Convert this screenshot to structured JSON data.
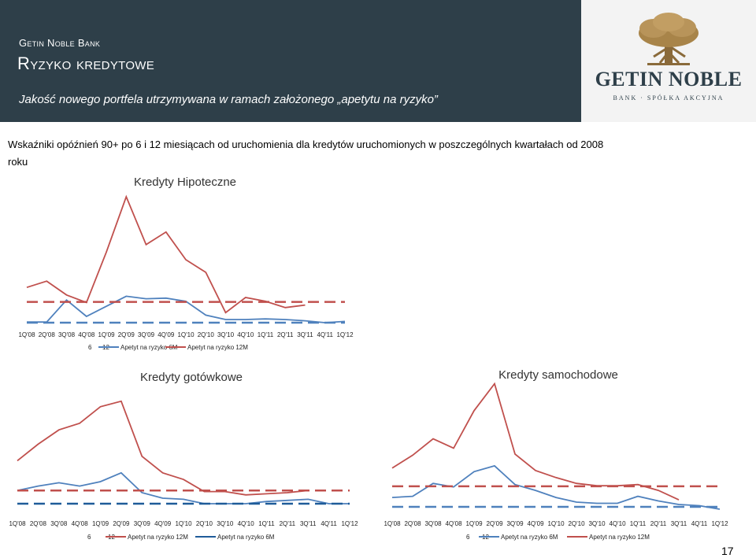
{
  "header": {
    "bank_name": "Getin Noble Bank",
    "title": "Ryzyko kredytowe",
    "subtitle": "Jakość nowego portfela utrzymywana w ramach założonego „apetytu na ryzyko”",
    "logo_name": "GETIN NOBLE",
    "logo_tagline": "BANK · SPÓŁKA AKCYJNA"
  },
  "intro": "Wskaźniki opóźnień 90+ po 6 i 12 miesiącach od uruchomienia dla kredytów uruchomionych w poszczególnych kwartałach od 2008 roku",
  "page_number": "17",
  "colors": {
    "header_bg": "#2e3f49",
    "red_series": "#c0504d",
    "blue_series": "#4f81bd",
    "dark_blue_risk": "#1f5c99"
  },
  "chart_data": [
    {
      "id": "hipoteczne",
      "type": "line",
      "title": "Kredyty Hipoteczne",
      "categories": [
        "1Q'08",
        "2Q'08",
        "3Q'08",
        "4Q'08",
        "1Q'09",
        "2Q'09",
        "3Q'09",
        "4Q'09",
        "1Q'10",
        "2Q'10",
        "3Q'10",
        "4Q'10",
        "1Q'11",
        "2Q'11",
        "3Q'11",
        "4Q'11",
        "1Q'12"
      ],
      "ylim": [
        0,
        100
      ],
      "series": [
        {
          "name": "6",
          "color": "#4f81bd",
          "dash": false,
          "values": [
            0.5,
            0.5,
            18,
            5,
            13,
            21,
            19,
            19.5,
            17,
            6,
            2.5,
            2.5,
            3,
            2.5,
            1.5,
            0,
            1
          ]
        },
        {
          "name": "12",
          "color": "#c0504d",
          "dash": false,
          "values": [
            28,
            33,
            22,
            16,
            56,
            100,
            62,
            72,
            50,
            40,
            8,
            20,
            17,
            12,
            14,
            null,
            null
          ]
        },
        {
          "name": "Apetyt na ryzyko 6M",
          "color": "#4f81bd",
          "dash": true,
          "values": [
            0,
            0,
            0,
            0,
            0,
            0,
            0,
            0,
            0,
            0,
            0,
            0,
            0,
            0,
            0,
            0,
            0
          ]
        },
        {
          "name": "Apetyt na ryzyko 12M",
          "color": "#c0504d",
          "dash": true,
          "values": [
            16.5,
            16.5,
            16.5,
            16.5,
            16.5,
            16.5,
            16.5,
            16.5,
            16.5,
            16.5,
            16.5,
            16.5,
            16.5,
            16.5,
            16.5,
            16.5,
            16.5
          ]
        }
      ]
    },
    {
      "id": "gotowkowe",
      "type": "line",
      "title": "Kredyty gotówkowe",
      "categories": [
        "1Q'08",
        "2Q'08",
        "3Q'08",
        "4Q'08",
        "1Q'09",
        "2Q'09",
        "3Q'09",
        "4Q'09",
        "1Q'10",
        "2Q'10",
        "3Q'10",
        "4Q'10",
        "1Q'11",
        "2Q'11",
        "3Q'11",
        "4Q'11",
        "1Q'12"
      ],
      "ylim": [
        0,
        100
      ],
      "series": [
        {
          "name": "6",
          "color": "#4f81bd",
          "dash": false,
          "values": [
            12,
            16,
            19,
            16,
            20,
            28,
            10,
            5,
            4,
            0,
            0,
            0,
            2,
            3,
            4,
            0,
            0
          ]
        },
        {
          "name": "12",
          "color": "#c0504d",
          "dash": false,
          "values": [
            39,
            54,
            67,
            73,
            88,
            93,
            43,
            28,
            22,
            11,
            11,
            8,
            9,
            10,
            12,
            null,
            null
          ]
        },
        {
          "name": "Apetyt na ryzyko 12M",
          "color": "#c0504d",
          "dash": true,
          "values": [
            12,
            12,
            12,
            12,
            12,
            12,
            12,
            12,
            12,
            12,
            12,
            12,
            12,
            12,
            12,
            12,
            12
          ]
        },
        {
          "name": "Apetyt na ryzyko 6M",
          "color": "#1f5c99",
          "dash": true,
          "values": [
            0,
            0,
            0,
            0,
            0,
            0,
            0,
            0,
            0,
            0,
            0,
            0,
            0,
            0,
            0,
            0,
            0
          ]
        }
      ]
    },
    {
      "id": "samochodowe",
      "type": "line",
      "title": "Kredyty samochodowe",
      "categories": [
        "1Q'08",
        "2Q'08",
        "3Q'08",
        "4Q'08",
        "1Q'09",
        "2Q'09",
        "3Q'09",
        "4Q'09",
        "1Q'10",
        "2Q'10",
        "3Q'10",
        "4Q'10",
        "1Q'11",
        "2Q'11",
        "3Q'11",
        "4Q'11",
        "1Q'12"
      ],
      "ylim": [
        0,
        100
      ],
      "series": [
        {
          "name": "6",
          "color": "#4f81bd",
          "dash": false,
          "values": [
            8,
            9,
            20,
            17,
            30,
            35,
            19,
            14,
            8,
            4,
            3,
            3,
            9,
            5,
            2,
            1,
            -2
          ]
        },
        {
          "name": "12",
          "color": "#c0504d",
          "dash": false,
          "values": [
            33,
            44,
            58,
            50,
            82,
            105,
            45,
            31,
            25,
            20,
            18,
            18,
            19,
            14,
            6,
            null,
            null
          ]
        },
        {
          "name": "Apetyt na ryzyko 6M",
          "color": "#4f81bd",
          "dash": true,
          "values": [
            0,
            0,
            0,
            0,
            0,
            0,
            0,
            0,
            0,
            0,
            0,
            0,
            0,
            0,
            0,
            0,
            0
          ]
        },
        {
          "name": "Apetyt na ryzyko 12M",
          "color": "#c0504d",
          "dash": true,
          "values": [
            17.5,
            17.5,
            17.5,
            17.5,
            17.5,
            17.5,
            17.5,
            17.5,
            17.5,
            17.5,
            17.5,
            17.5,
            17.5,
            17.5,
            17.5,
            17.5,
            17.5
          ]
        }
      ]
    }
  ]
}
